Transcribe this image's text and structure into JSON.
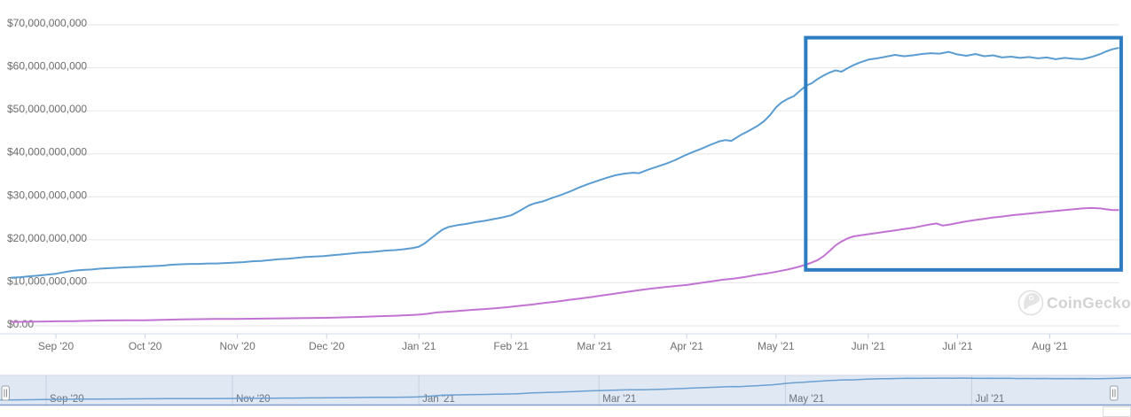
{
  "watermark": {
    "label": "CoinGecko"
  },
  "chart_data": {
    "type": "line",
    "title": "",
    "grid": "horizontal",
    "legend": "none",
    "ylim": [
      0,
      70
    ],
    "y_value_unit": "billions USD",
    "x_unit": "day offset (day 0 = mid-Aug 2020)",
    "y_ticks": [
      {
        "value": 70,
        "label": "$70,000,000,000"
      },
      {
        "value": 60,
        "label": "$60,000,000,000"
      },
      {
        "value": 50,
        "label": "$50,000,000,000"
      },
      {
        "value": 40,
        "label": "$40,000,000,000"
      },
      {
        "value": 30,
        "label": "$30,000,000,000"
      },
      {
        "value": 20,
        "label": "$20,000,000,000"
      },
      {
        "value": 10,
        "label": "$10,000,000,000"
      },
      {
        "value": 0,
        "label": "$0.00"
      }
    ],
    "x_ticks": [
      {
        "day": 18,
        "label": "Sep '20"
      },
      {
        "day": 48,
        "label": "Oct '20"
      },
      {
        "day": 79,
        "label": "Nov '20"
      },
      {
        "day": 109,
        "label": "Dec '20"
      },
      {
        "day": 140,
        "label": "Jan '21"
      },
      {
        "day": 171,
        "label": "Feb '21"
      },
      {
        "day": 199,
        "label": "Mar '21"
      },
      {
        "day": 230,
        "label": "Apr '21"
      },
      {
        "day": 260,
        "label": "May '21"
      },
      {
        "day": 291,
        "label": "Jun '21"
      },
      {
        "day": 321,
        "label": "Jul '21"
      },
      {
        "day": 352,
        "label": "Aug '21"
      }
    ],
    "series": [
      {
        "id": "blue-line",
        "color": "#5b9cd1",
        "points": [
          [
            3,
            11.2
          ],
          [
            6,
            11.3
          ],
          [
            9,
            11.5
          ],
          [
            12,
            11.7
          ],
          [
            15,
            11.9
          ],
          [
            18,
            12.1
          ],
          [
            21,
            12.5
          ],
          [
            24,
            12.8
          ],
          [
            27,
            13.0
          ],
          [
            30,
            13.1
          ],
          [
            33,
            13.3
          ],
          [
            36,
            13.4
          ],
          [
            39,
            13.5
          ],
          [
            42,
            13.6
          ],
          [
            45,
            13.7
          ],
          [
            48,
            13.8
          ],
          [
            51,
            13.9
          ],
          [
            54,
            14.0
          ],
          [
            57,
            14.2
          ],
          [
            60,
            14.3
          ],
          [
            63,
            14.4
          ],
          [
            66,
            14.4
          ],
          [
            69,
            14.5
          ],
          [
            72,
            14.5
          ],
          [
            75,
            14.6
          ],
          [
            78,
            14.7
          ],
          [
            81,
            14.8
          ],
          [
            84,
            15.0
          ],
          [
            87,
            15.1
          ],
          [
            90,
            15.3
          ],
          [
            93,
            15.5
          ],
          [
            96,
            15.6
          ],
          [
            99,
            15.8
          ],
          [
            102,
            16.0
          ],
          [
            105,
            16.1
          ],
          [
            108,
            16.2
          ],
          [
            111,
            16.4
          ],
          [
            114,
            16.6
          ],
          [
            117,
            16.8
          ],
          [
            120,
            17.0
          ],
          [
            123,
            17.1
          ],
          [
            126,
            17.3
          ],
          [
            129,
            17.5
          ],
          [
            132,
            17.6
          ],
          [
            135,
            17.8
          ],
          [
            138,
            18.1
          ],
          [
            140,
            18.4
          ],
          [
            142,
            19.2
          ],
          [
            144,
            20.3
          ],
          [
            146,
            21.4
          ],
          [
            148,
            22.4
          ],
          [
            150,
            23.0
          ],
          [
            153,
            23.4
          ],
          [
            156,
            23.7
          ],
          [
            159,
            24.1
          ],
          [
            162,
            24.4
          ],
          [
            165,
            24.8
          ],
          [
            168,
            25.2
          ],
          [
            171,
            25.7
          ],
          [
            173,
            26.4
          ],
          [
            175,
            27.2
          ],
          [
            177,
            28.0
          ],
          [
            179,
            28.5
          ],
          [
            182,
            29.0
          ],
          [
            185,
            29.8
          ],
          [
            188,
            30.5
          ],
          [
            191,
            31.3
          ],
          [
            194,
            32.2
          ],
          [
            197,
            33.0
          ],
          [
            200,
            33.7
          ],
          [
            203,
            34.4
          ],
          [
            206,
            35.0
          ],
          [
            209,
            35.4
          ],
          [
            212,
            35.6
          ],
          [
            214,
            35.5
          ],
          [
            217,
            36.3
          ],
          [
            220,
            37.0
          ],
          [
            223,
            37.7
          ],
          [
            226,
            38.5
          ],
          [
            229,
            39.5
          ],
          [
            232,
            40.4
          ],
          [
            235,
            41.2
          ],
          [
            238,
            42.1
          ],
          [
            241,
            42.9
          ],
          [
            243,
            43.2
          ],
          [
            245,
            43.0
          ],
          [
            248,
            44.3
          ],
          [
            251,
            45.4
          ],
          [
            254,
            46.6
          ],
          [
            256,
            47.6
          ],
          [
            258,
            49.0
          ],
          [
            260,
            50.8
          ],
          [
            262,
            52.0
          ],
          [
            264,
            52.8
          ],
          [
            266,
            53.4
          ],
          [
            268,
            54.6
          ],
          [
            270,
            55.8
          ],
          [
            272,
            56.4
          ],
          [
            274,
            57.4
          ],
          [
            276,
            58.2
          ],
          [
            278,
            58.9
          ],
          [
            280,
            59.4
          ],
          [
            282,
            59.1
          ],
          [
            284,
            59.9
          ],
          [
            286,
            60.6
          ],
          [
            288,
            61.2
          ],
          [
            291,
            61.9
          ],
          [
            294,
            62.2
          ],
          [
            297,
            62.6
          ],
          [
            300,
            63.0
          ],
          [
            303,
            62.7
          ],
          [
            306,
            62.9
          ],
          [
            309,
            63.2
          ],
          [
            312,
            63.4
          ],
          [
            315,
            63.3
          ],
          [
            318,
            63.7
          ],
          [
            321,
            63.1
          ],
          [
            324,
            62.8
          ],
          [
            327,
            63.2
          ],
          [
            330,
            62.7
          ],
          [
            333,
            62.9
          ],
          [
            336,
            62.4
          ],
          [
            339,
            62.6
          ],
          [
            342,
            62.3
          ],
          [
            345,
            62.5
          ],
          [
            348,
            62.2
          ],
          [
            351,
            62.4
          ],
          [
            354,
            62.0
          ],
          [
            357,
            62.3
          ],
          [
            360,
            62.1
          ],
          [
            363,
            62.0
          ],
          [
            366,
            62.5
          ],
          [
            369,
            63.2
          ],
          [
            371,
            63.8
          ],
          [
            373,
            64.3
          ],
          [
            375,
            64.6
          ]
        ]
      },
      {
        "id": "purple-line",
        "color": "#c273d2",
        "points": [
          [
            3,
            0.9
          ],
          [
            9,
            0.95
          ],
          [
            15,
            1.0
          ],
          [
            18,
            1.05
          ],
          [
            24,
            1.1
          ],
          [
            30,
            1.2
          ],
          [
            36,
            1.25
          ],
          [
            42,
            1.3
          ],
          [
            48,
            1.3
          ],
          [
            54,
            1.4
          ],
          [
            60,
            1.5
          ],
          [
            66,
            1.55
          ],
          [
            72,
            1.6
          ],
          [
            78,
            1.6
          ],
          [
            84,
            1.65
          ],
          [
            90,
            1.7
          ],
          [
            96,
            1.75
          ],
          [
            102,
            1.8
          ],
          [
            108,
            1.85
          ],
          [
            114,
            1.95
          ],
          [
            120,
            2.05
          ],
          [
            126,
            2.2
          ],
          [
            132,
            2.35
          ],
          [
            137,
            2.5
          ],
          [
            140,
            2.6
          ],
          [
            143,
            2.8
          ],
          [
            146,
            3.1
          ],
          [
            150,
            3.3
          ],
          [
            154,
            3.5
          ],
          [
            158,
            3.7
          ],
          [
            162,
            3.9
          ],
          [
            166,
            4.1
          ],
          [
            170,
            4.35
          ],
          [
            174,
            4.65
          ],
          [
            178,
            4.95
          ],
          [
            182,
            5.3
          ],
          [
            186,
            5.6
          ],
          [
            190,
            6.0
          ],
          [
            194,
            6.35
          ],
          [
            198,
            6.7
          ],
          [
            202,
            7.1
          ],
          [
            206,
            7.5
          ],
          [
            210,
            7.9
          ],
          [
            214,
            8.3
          ],
          [
            218,
            8.65
          ],
          [
            222,
            8.95
          ],
          [
            226,
            9.25
          ],
          [
            230,
            9.5
          ],
          [
            234,
            9.9
          ],
          [
            238,
            10.3
          ],
          [
            242,
            10.7
          ],
          [
            246,
            11.0
          ],
          [
            250,
            11.4
          ],
          [
            254,
            11.9
          ],
          [
            258,
            12.3
          ],
          [
            261,
            12.7
          ],
          [
            264,
            13.1
          ],
          [
            267,
            13.6
          ],
          [
            270,
            14.2
          ],
          [
            272,
            14.7
          ],
          [
            274,
            15.3
          ],
          [
            276,
            16.2
          ],
          [
            278,
            17.4
          ],
          [
            280,
            18.7
          ],
          [
            282,
            19.6
          ],
          [
            284,
            20.3
          ],
          [
            286,
            20.8
          ],
          [
            288,
            21.0
          ],
          [
            291,
            21.3
          ],
          [
            294,
            21.6
          ],
          [
            297,
            21.9
          ],
          [
            300,
            22.2
          ],
          [
            303,
            22.5
          ],
          [
            306,
            22.8
          ],
          [
            309,
            23.2
          ],
          [
            312,
            23.6
          ],
          [
            314,
            23.8
          ],
          [
            316,
            23.3
          ],
          [
            318,
            23.5
          ],
          [
            321,
            23.9
          ],
          [
            324,
            24.3
          ],
          [
            327,
            24.6
          ],
          [
            330,
            24.9
          ],
          [
            333,
            25.2
          ],
          [
            336,
            25.4
          ],
          [
            339,
            25.7
          ],
          [
            342,
            25.9
          ],
          [
            345,
            26.1
          ],
          [
            348,
            26.3
          ],
          [
            351,
            26.5
          ],
          [
            354,
            26.7
          ],
          [
            357,
            26.9
          ],
          [
            360,
            27.1
          ],
          [
            363,
            27.3
          ],
          [
            366,
            27.4
          ],
          [
            369,
            27.3
          ],
          [
            371,
            27.1
          ],
          [
            373,
            26.9
          ],
          [
            375,
            26.9
          ]
        ]
      }
    ],
    "highlight_box": {
      "day_start": 270,
      "day_end": 376,
      "value_top": 67.0,
      "value_bottom": 13.0,
      "color": "#2e7dc1"
    },
    "navigator": {
      "selected_range": "full",
      "x_ticks": [
        {
          "day": 18,
          "label": "Sep '20"
        },
        {
          "day": 79,
          "label": "Nov '20"
        },
        {
          "day": 140,
          "label": "Jan '21"
        },
        {
          "day": 199,
          "label": "Mar '21"
        },
        {
          "day": 260,
          "label": "May '21"
        },
        {
          "day": 321,
          "label": "Jul '21"
        }
      ]
    }
  },
  "colors": {
    "gridline": "#e6e6e6",
    "axis_line": "#d3dae6",
    "tick_mark": "#c9d2e0",
    "axis_label": "#6f6f6f",
    "nav_fill": "#e0e8f3",
    "nav_grid": "#c4cfe0",
    "nav_top_border": "#ccd5e4",
    "nav_bottom_border": "#7e9dc8",
    "nav_line": "#6ba0d2",
    "watermark": "#d2d2d2"
  }
}
